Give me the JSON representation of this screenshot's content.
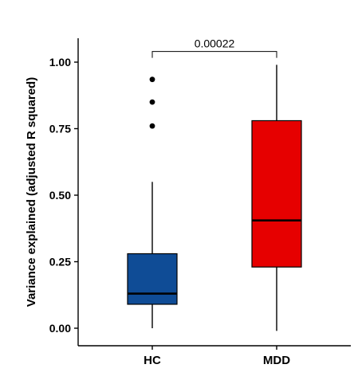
{
  "chart_data": {
    "type": "box",
    "categories": [
      "HC",
      "MDD"
    ],
    "ylabel": "Variance explained (adjusted R squared)",
    "xlabel": "",
    "ylim": [
      -0.05,
      1.1
    ],
    "yticks": [
      0.0,
      0.25,
      0.5,
      0.75,
      1.0
    ],
    "ytick_labels": [
      "0.00",
      "0.25",
      "0.50",
      "0.75",
      "1.00"
    ],
    "grid": false,
    "boxes": [
      {
        "category": "HC",
        "color": "#0f4c96",
        "whisker_low": 0.0,
        "q1": 0.09,
        "median": 0.13,
        "q3": 0.28,
        "whisker_high": 0.55,
        "outliers": [
          0.76,
          0.85,
          0.935
        ]
      },
      {
        "category": "MDD",
        "color": "#e60000",
        "whisker_low": -0.01,
        "q1": 0.23,
        "median": 0.405,
        "q3": 0.78,
        "whisker_high": 0.99,
        "outliers": []
      }
    ],
    "annotations": [
      {
        "type": "significance-bracket",
        "between": [
          "HC",
          "MDD"
        ],
        "level": 1.04,
        "label": "0.00022"
      }
    ]
  }
}
